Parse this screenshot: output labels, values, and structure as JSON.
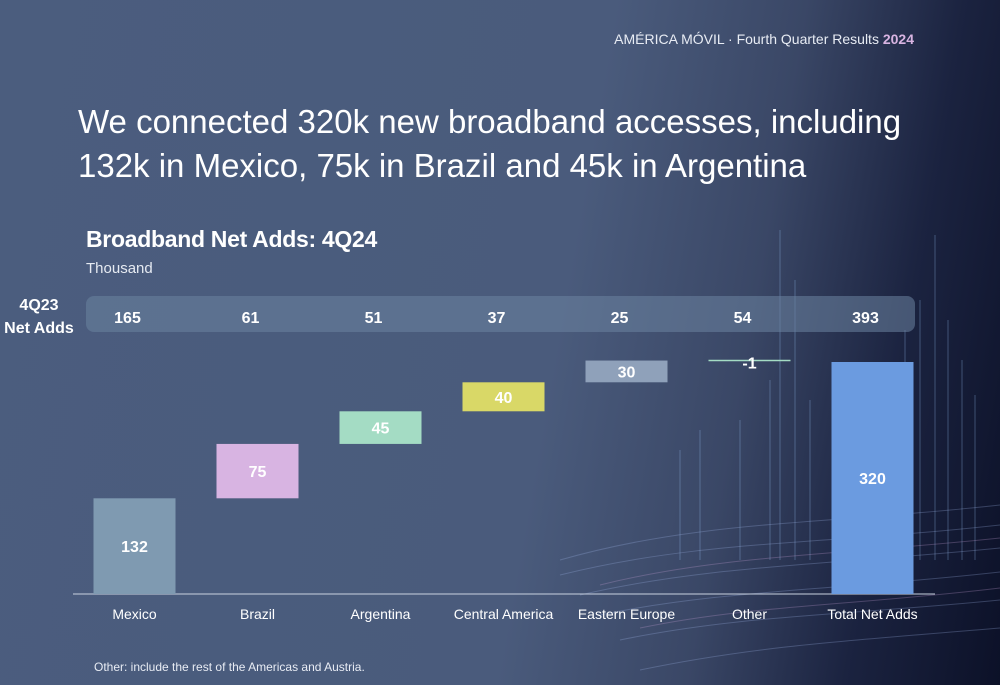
{
  "header": {
    "text": "AMÉRICA MÓVIL · Fourth Quarter Results ",
    "year": "2024"
  },
  "headline": "We connected 320k new broadband accesses, including 132k in Mexico, 75k in Brazil and 45k in Argentina",
  "footnote": "Other: include the rest of the Americas and Austria.",
  "prior": {
    "label_line1": "4Q23",
    "label_line2": "Net Adds"
  },
  "chart_data": {
    "type": "bar",
    "subtype": "waterfall",
    "title": "Broadband Net Adds: 4Q24",
    "subtitle": "Thousand",
    "categories": [
      "Mexico",
      "Brazil",
      "Argentina",
      "Central America",
      "Eastern Europe",
      "Other",
      "Total Net Adds"
    ],
    "values": [
      132,
      75,
      45,
      40,
      30,
      -1,
      320
    ],
    "value_labels": [
      "132",
      "75",
      "45",
      "40",
      "30",
      "-1",
      "320"
    ],
    "prior_year_values": [
      165,
      61,
      51,
      37,
      25,
      54,
      393
    ],
    "colors": [
      "#7f9ab1",
      "#d8b4e2",
      "#a4dcc4",
      "#d9d867",
      "#8fa1ba",
      "#a4dcc4",
      "#6b9be0"
    ],
    "total_index": 6,
    "ylim": [
      0,
      320
    ],
    "grid": false,
    "legend": "none"
  }
}
